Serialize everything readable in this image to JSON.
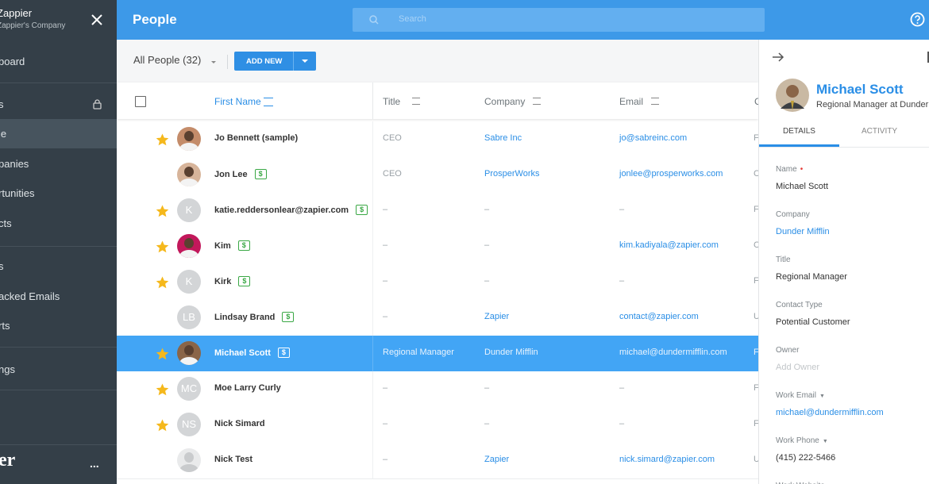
{
  "sidebar": {
    "org_name": "Zappier",
    "org_subtitle": "Zappier's Company",
    "nav": [
      "board",
      "s",
      "le",
      "panies",
      "rtunities",
      "cts",
      "s",
      "acked Emails",
      "rts",
      "ngs"
    ],
    "footer_logo": "er",
    "more": "..."
  },
  "topbar": {
    "title": "People",
    "search_placeholder": "Search"
  },
  "toolbar": {
    "view": "All People (32)",
    "add_button": "ADD NEW"
  },
  "table": {
    "columns": [
      "First Name",
      "Title",
      "Company",
      "Email",
      "C"
    ],
    "rows": [
      {
        "starred": true,
        "name": "Jo Bennett (sample)",
        "title": "CEO",
        "company": "Sabre Inc",
        "email": "jo@sabreinc.com",
        "extra": "F"
      },
      {
        "starred": false,
        "name": "Jon Lee",
        "badge": "$",
        "title": "CEO",
        "company": "ProsperWorks",
        "email": "jonlee@prosperworks.com",
        "extra": "C"
      },
      {
        "starred": true,
        "initials": "K",
        "name": "katie.reddersonlear@zapier.com",
        "badge": "$",
        "title": "–",
        "company": "–",
        "email": "–",
        "extra": "F"
      },
      {
        "starred": true,
        "name": "Kim",
        "badge": "$",
        "title": "–",
        "company": "–",
        "email": "kim.kadiyala@zapier.com",
        "extra": "C"
      },
      {
        "starred": true,
        "initials": "K",
        "name": "Kirk",
        "badge": "$",
        "title": "–",
        "company": "–",
        "email": "–",
        "extra": "F"
      },
      {
        "starred": false,
        "initials": "LB",
        "name": "Lindsay Brand",
        "badge": "$",
        "title": "–",
        "company": "Zapier",
        "email": "contact@zapier.com",
        "extra": "U"
      },
      {
        "starred": true,
        "selected": true,
        "name": "Michael Scott",
        "badge": "$",
        "title": "Regional Manager",
        "company": "Dunder Mifflin",
        "email": "michael@dundermifflin.com",
        "extra": "F"
      },
      {
        "starred": true,
        "initials": "MC",
        "name": "Moe Larry Curly",
        "title": "–",
        "company": "–",
        "email": "–",
        "extra": "F"
      },
      {
        "starred": true,
        "initials": "NS",
        "name": "Nick Simard",
        "title": "–",
        "company": "–",
        "email": "–",
        "extra": "F"
      },
      {
        "starred": false,
        "name": "Nick Test",
        "title": "–",
        "company": "Zapier",
        "email": "nick.simard@zapier.com",
        "extra": "U"
      }
    ]
  },
  "detail": {
    "name": "Michael Scott",
    "subtitle": "Regional Manager at Dunder",
    "tabs": [
      "DETAILS",
      "ACTIVITY"
    ],
    "fields": [
      {
        "label": "Name",
        "required": true,
        "value": "Michael Scott"
      },
      {
        "label": "Company",
        "value": "Dunder Mifflin",
        "link": true
      },
      {
        "label": "Title",
        "value": "Regional Manager"
      },
      {
        "label": "Contact Type",
        "value": "Potential Customer"
      },
      {
        "label": "Owner",
        "value": "Add Owner",
        "placeholder": true
      },
      {
        "label": "Work Email",
        "dropdown": true,
        "value": "michael@dundermifflin.com",
        "link": true
      },
      {
        "label": "Work Phone",
        "dropdown": true,
        "value": "(415) 222-5466"
      },
      {
        "label": "Work Website"
      }
    ]
  }
}
